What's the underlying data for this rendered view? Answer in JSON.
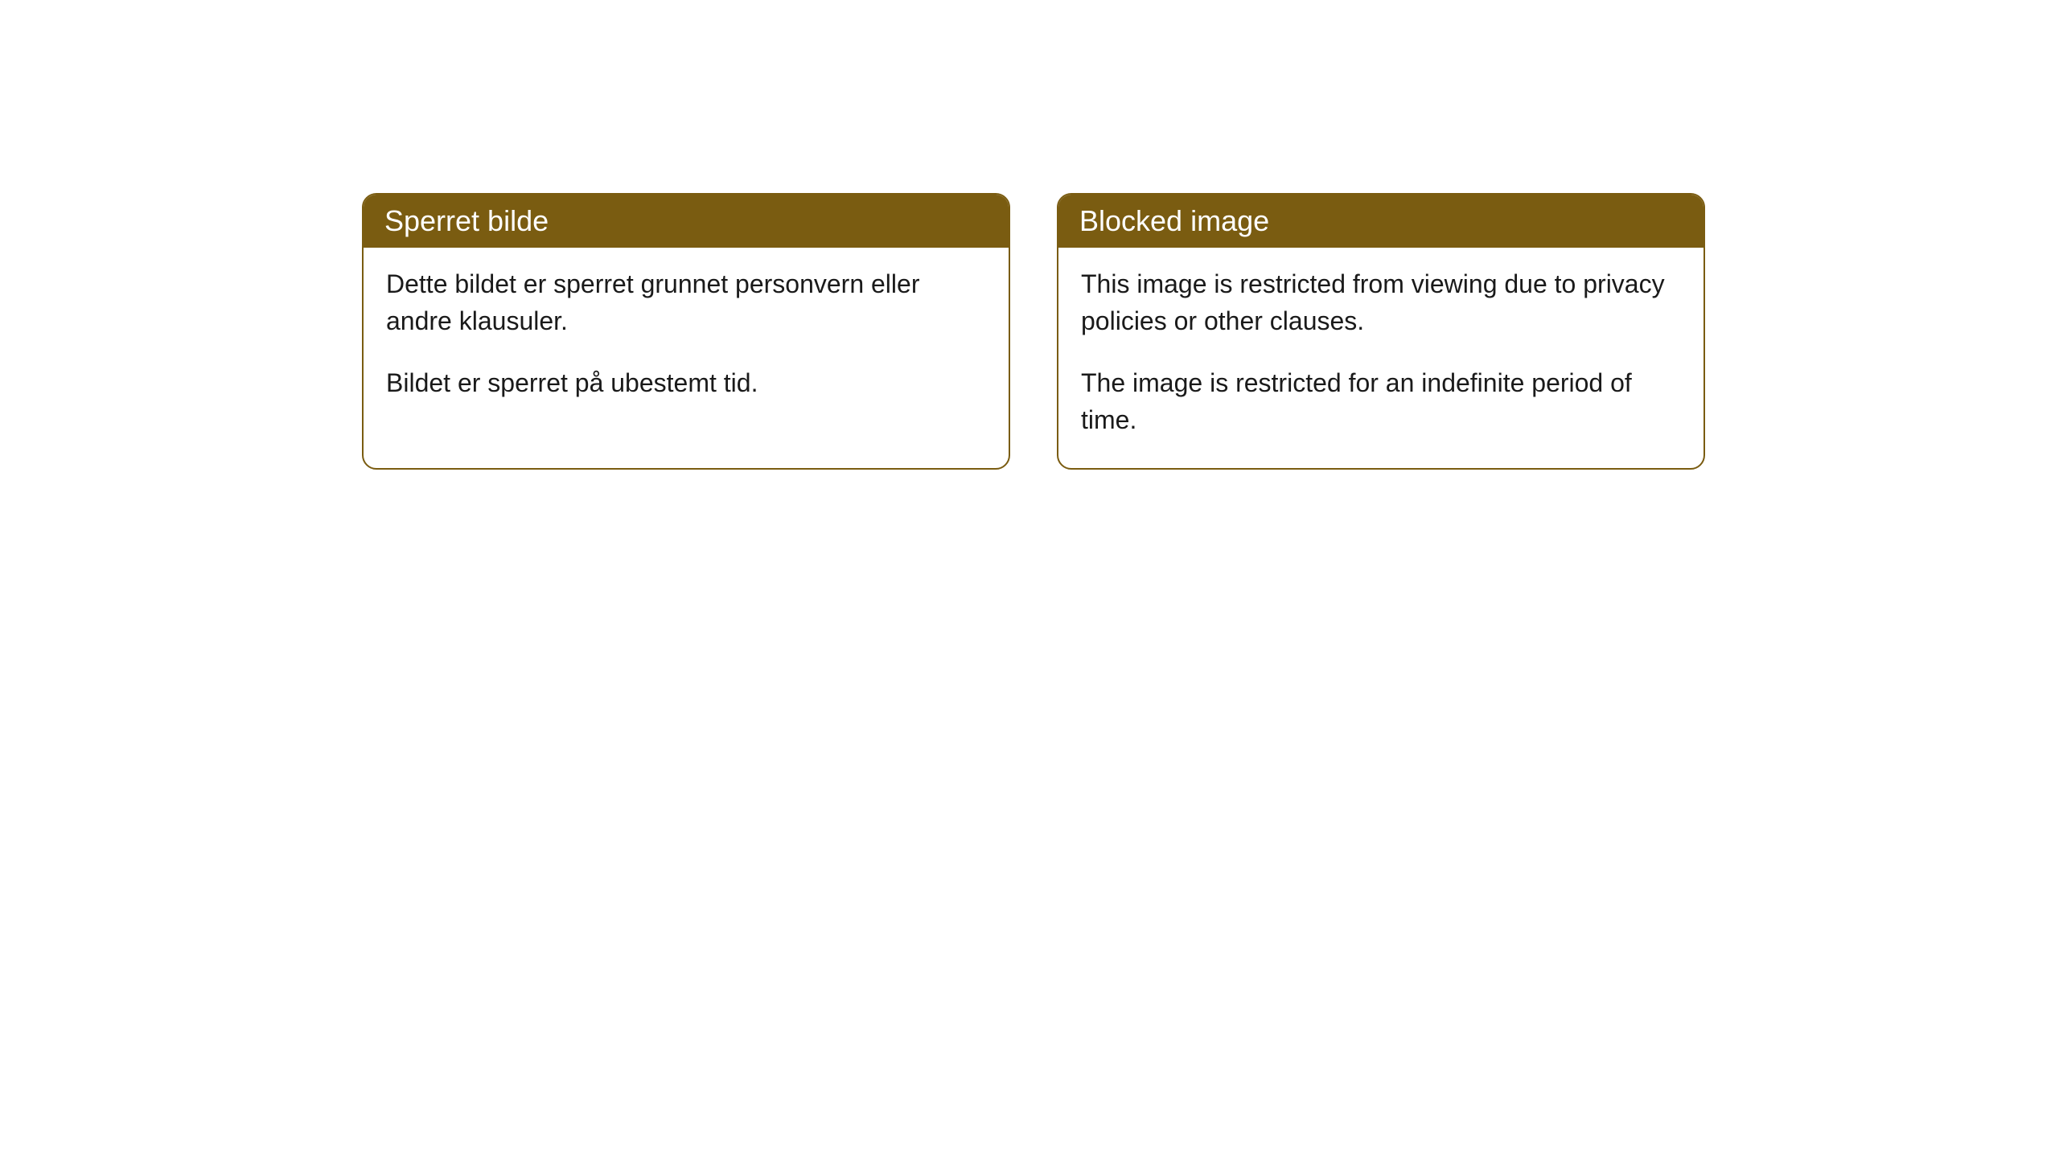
{
  "cards": [
    {
      "title": "Sperret bilde",
      "paragraph1": "Dette bildet er sperret grunnet personvern eller andre klausuler.",
      "paragraph2": "Bildet er sperret på ubestemt tid."
    },
    {
      "title": "Blocked image",
      "paragraph1": "This image is restricted from viewing due to privacy policies or other clauses.",
      "paragraph2": "The image is restricted for an indefinite period of time."
    }
  ],
  "styling": {
    "header_background_color": "#7a5c11",
    "header_text_color": "#ffffff",
    "border_color": "#7a5c11",
    "body_background_color": "#ffffff",
    "body_text_color": "#1a1a1a",
    "border_radius": 18,
    "title_fontsize": 36,
    "body_fontsize": 32
  }
}
